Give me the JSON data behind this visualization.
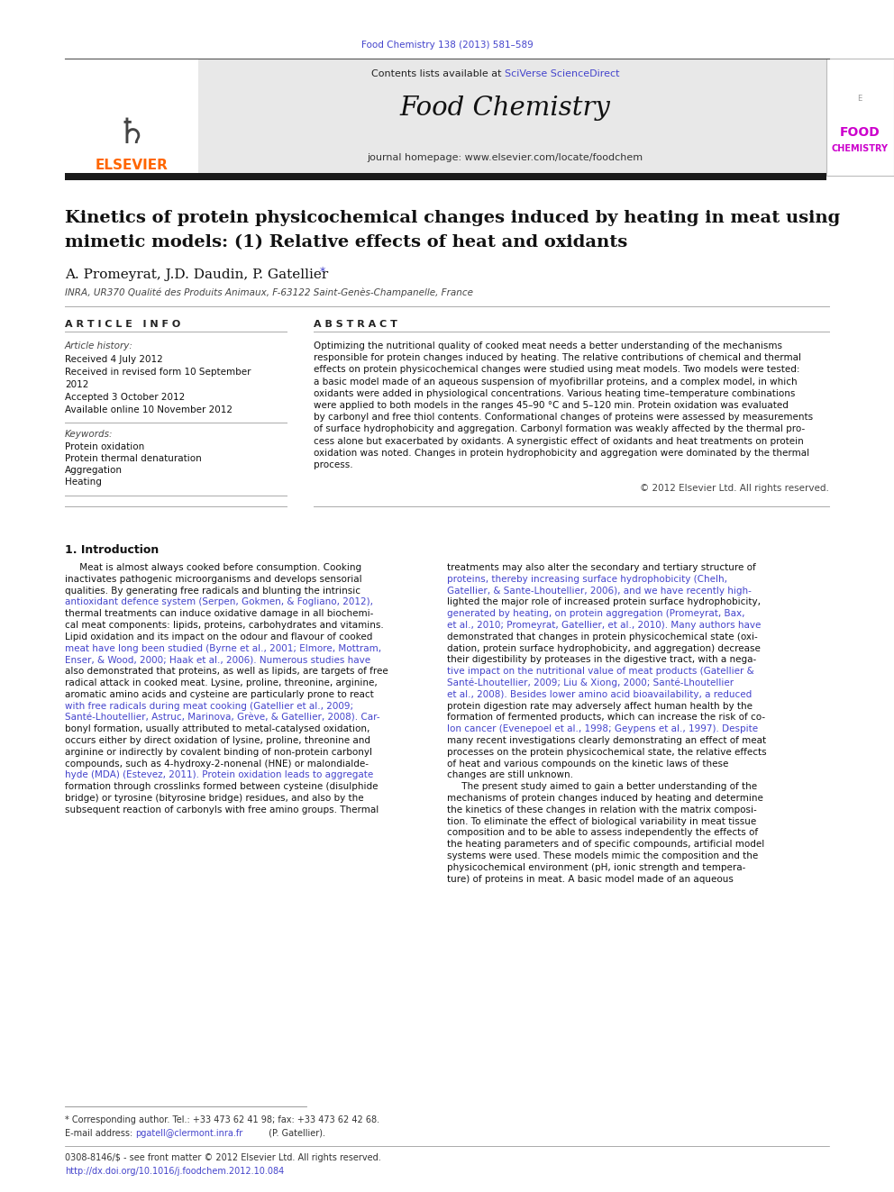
{
  "journal_ref": "Food Chemistry 138 (2013) 581–589",
  "journal_ref_color": "#4444cc",
  "contents_text": "Contents lists available at ",
  "sciverse_text": "SciVerse ScienceDirect",
  "sciverse_color": "#4444cc",
  "journal_name": "Food Chemistry",
  "journal_homepage_label": "journal homepage: ",
  "journal_homepage_url": "www.elsevier.com/locate/foodchem",
  "paper_title_line1": "Kinetics of protein physicochemical changes induced by heating in meat using",
  "paper_title_line2": "mimetic models: (1) Relative effects of heat and oxidants",
  "authors": "A. Promeyrat, J.D. Daudin, P. Gatellier",
  "author_star": "*",
  "author_star_color": "#4444cc",
  "affiliation": "INRA, UR370 Qualité des Produits Animaux, F-63122 Saint-Genès-Champanelle, France",
  "article_info_header": "A R T I C L E   I N F O",
  "abstract_header": "A B S T R A C T",
  "article_history_label": "Article history:",
  "received_1": "Received 4 July 2012",
  "received_2": "Received in revised form 10 September",
  "received_2b": "2012",
  "accepted": "Accepted 3 October 2012",
  "available": "Available online 10 November 2012",
  "keywords_label": "Keywords:",
  "keyword1": "Protein oxidation",
  "keyword2": "Protein thermal denaturation",
  "keyword3": "Aggregation",
  "keyword4": "Heating",
  "copyright_text": "© 2012 Elsevier Ltd. All rights reserved.",
  "intro_header": "1. Introduction",
  "footnote_star": "* Corresponding author. Tel.: +33 473 62 41 98; fax: +33 473 62 42 68.",
  "footnote_email_label": "E-mail address: ",
  "footnote_email": "pgatell@clermont.inra.fr",
  "footnote_email_suffix": " (P. Gatellier).",
  "footnote_copyright": "0308-8146/$ - see front matter © 2012 Elsevier Ltd. All rights reserved.",
  "footnote_doi": "http://dx.doi.org/10.1016/j.foodchem.2012.10.084",
  "ref_color": "#4444cc",
  "header_bg_color": "#e8e8e8",
  "thick_bar_color": "#1a1a1a",
  "elsevier_color": "#FF6600",
  "food_logo_color": "#cc00cc",
  "abstract_lines": [
    "Optimizing the nutritional quality of cooked meat needs a better understanding of the mechanisms",
    "responsible for protein changes induced by heating. The relative contributions of chemical and thermal",
    "effects on protein physicochemical changes were studied using meat models. Two models were tested:",
    "a basic model made of an aqueous suspension of myofibrillar proteins, and a complex model, in which",
    "oxidants were added in physiological concentrations. Various heating time–temperature combinations",
    "were applied to both models in the ranges 45–90 °C and 5–120 min. Protein oxidation was evaluated",
    "by carbonyl and free thiol contents. Conformational changes of proteins were assessed by measurements",
    "of surface hydrophobicity and aggregation. Carbonyl formation was weakly affected by the thermal pro-",
    "cess alone but exacerbated by oxidants. A synergistic effect of oxidants and heat treatments on protein",
    "oxidation was noted. Changes in protein hydrophobicity and aggregation were dominated by the thermal",
    "process."
  ],
  "left_col_lines": [
    "     Meat is almost always cooked before consumption. Cooking",
    "inactivates pathogenic microorganisms and develops sensorial",
    "qualities. By generating free radicals and blunting the intrinsic",
    "antioxidant defence system (Serpen, Gokmen, & Fogliano, 2012),",
    "thermal treatments can induce oxidative damage in all biochemi-",
    "cal meat components: lipids, proteins, carbohydrates and vitamins.",
    "Lipid oxidation and its impact on the odour and flavour of cooked",
    "meat have long been studied (Byrne et al., 2001; Elmore, Mottram,",
    "Enser, & Wood, 2000; Haak et al., 2006). Numerous studies have",
    "also demonstrated that proteins, as well as lipids, are targets of free",
    "radical attack in cooked meat. Lysine, proline, threonine, arginine,",
    "aromatic amino acids and cysteine are particularly prone to react",
    "with free radicals during meat cooking (Gatellier et al., 2009;",
    "Santé-Lhoutellier, Astruc, Marinova, Grève, & Gatellier, 2008). Car-",
    "bonyl formation, usually attributed to metal-catalysed oxidation,",
    "occurs either by direct oxidation of lysine, proline, threonine and",
    "arginine or indirectly by covalent binding of non-protein carbonyl",
    "compounds, such as 4-hydroxy-2-nonenal (HNE) or malondialde-",
    "hyde (MDA) (Estevez, 2011). Protein oxidation leads to aggregate",
    "formation through crosslinks formed between cysteine (disulphide",
    "bridge) or tyrosine (bityrosine bridge) residues, and also by the",
    "subsequent reaction of carbonyls with free amino groups. Thermal"
  ],
  "left_col_ref_lines": [
    3,
    7,
    8,
    12,
    13,
    18
  ],
  "right_col_lines": [
    "treatments may also alter the secondary and tertiary structure of",
    "proteins, thereby increasing surface hydrophobicity (Chelh,",
    "Gatellier, & Sante-Lhoutellier, 2006), and we have recently high-",
    "lighted the major role of increased protein surface hydrophobicity,",
    "generated by heating, on protein aggregation (Promeyrat, Bax,",
    "et al., 2010; Promeyrat, Gatellier, et al., 2010). Many authors have",
    "demonstrated that changes in protein physicochemical state (oxi-",
    "dation, protein surface hydrophobicity, and aggregation) decrease",
    "their digestibility by proteases in the digestive tract, with a nega-",
    "tive impact on the nutritional value of meat products (Gatellier &",
    "Santé-Lhoutellier, 2009; Liu & Xiong, 2000; Santé-Lhoutellier",
    "et al., 2008). Besides lower amino acid bioavailability, a reduced",
    "protein digestion rate may adversely affect human health by the",
    "formation of fermented products, which can increase the risk of co-",
    "lon cancer (Evenepoel et al., 1998; Geypens et al., 1997). Despite",
    "many recent investigations clearly demonstrating an effect of meat",
    "processes on the protein physicochemical state, the relative effects",
    "of heat and various compounds on the kinetic laws of these",
    "changes are still unknown.",
    "     The present study aimed to gain a better understanding of the",
    "mechanisms of protein changes induced by heating and determine",
    "the kinetics of these changes in relation with the matrix composi-",
    "tion. To eliminate the effect of biological variability in meat tissue",
    "composition and to be able to assess independently the effects of",
    "the heating parameters and of specific compounds, artificial model",
    "systems were used. These models mimic the composition and the",
    "physicochemical environment (pH, ionic strength and tempera-",
    "ture) of proteins in meat. A basic model made of an aqueous"
  ],
  "right_col_ref_lines": [
    1,
    2,
    4,
    5,
    9,
    10,
    11,
    14
  ]
}
